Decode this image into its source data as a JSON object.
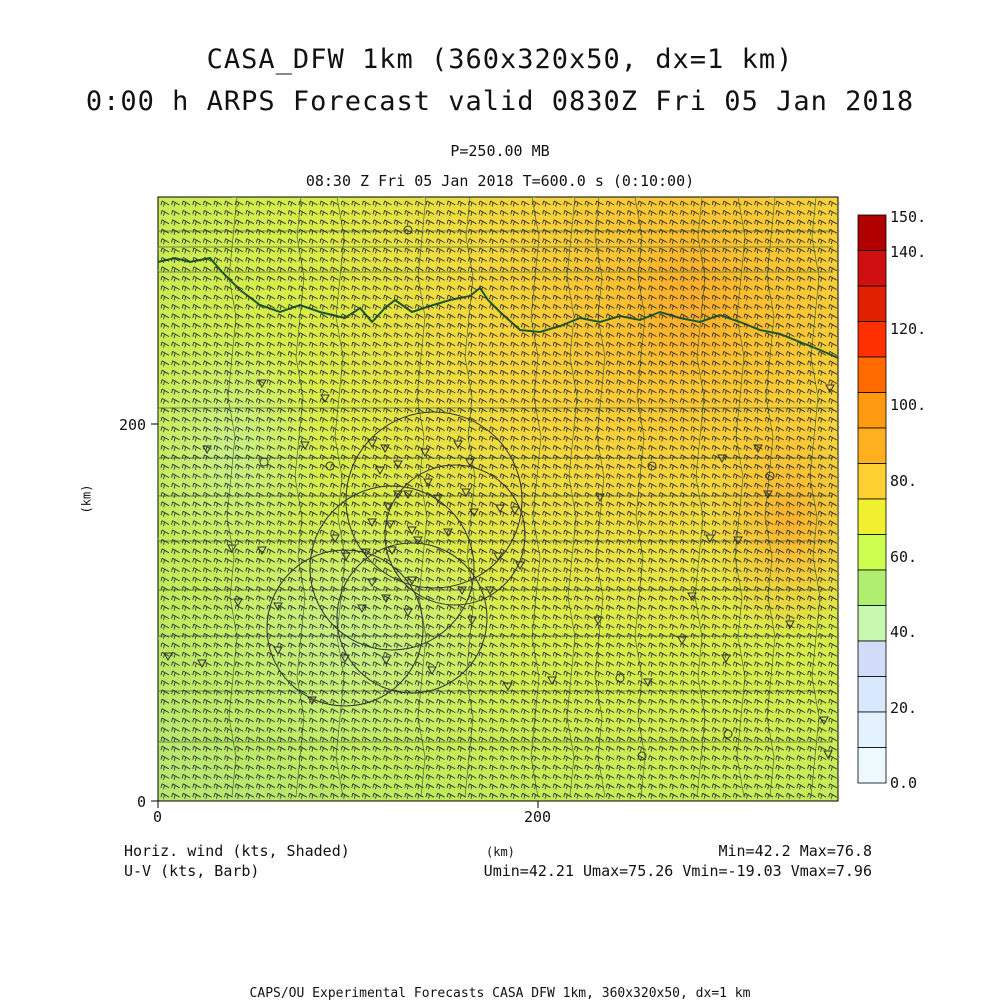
{
  "header": {
    "title_line1": "CASA_DFW 1km (360x320x50, dx=1 km)",
    "title_line2": "0:00 h ARPS Forecast valid 0830Z Fri 05 Jan 2018",
    "level": "P=250.00 MB",
    "valid_time": "08:30 Z Fri 05 Jan 2018   T=600.0 s (0:10:00)"
  },
  "axes": {
    "x_ticks": [
      "0",
      "200"
    ],
    "y_ticks": [
      "0",
      "200"
    ],
    "x_label": "(km)",
    "y_label": "(km)"
  },
  "colorbar": {
    "labels": [
      "150.",
      "140.",
      "120.",
      "100.",
      "80.",
      "60.",
      "40.",
      "20.",
      "0.0"
    ],
    "colors": [
      "#b00000",
      "#d01010",
      "#e02000",
      "#ff3000",
      "#ff6a00",
      "#ff9a10",
      "#ffb020",
      "#ffd030",
      "#f0f030",
      "#ccff50",
      "#b0ee70",
      "#c8f7b0",
      "#d0dcf8",
      "#d8e8ff",
      "#e4f2ff",
      "#eef8ff"
    ]
  },
  "footer": {
    "left1": "Horiz. wind (kts, Shaded)",
    "left2": "U-V (kts, Barb)",
    "right1": "Min=42.2 Max=76.8",
    "right2": "Umin=42.21 Umax=75.26 Vmin=-19.03 Vmax=7.96",
    "credit": "CAPS/OU Experimental Forecasts  CASA DFW 1km, 360x320x50, dx=1 km"
  }
}
